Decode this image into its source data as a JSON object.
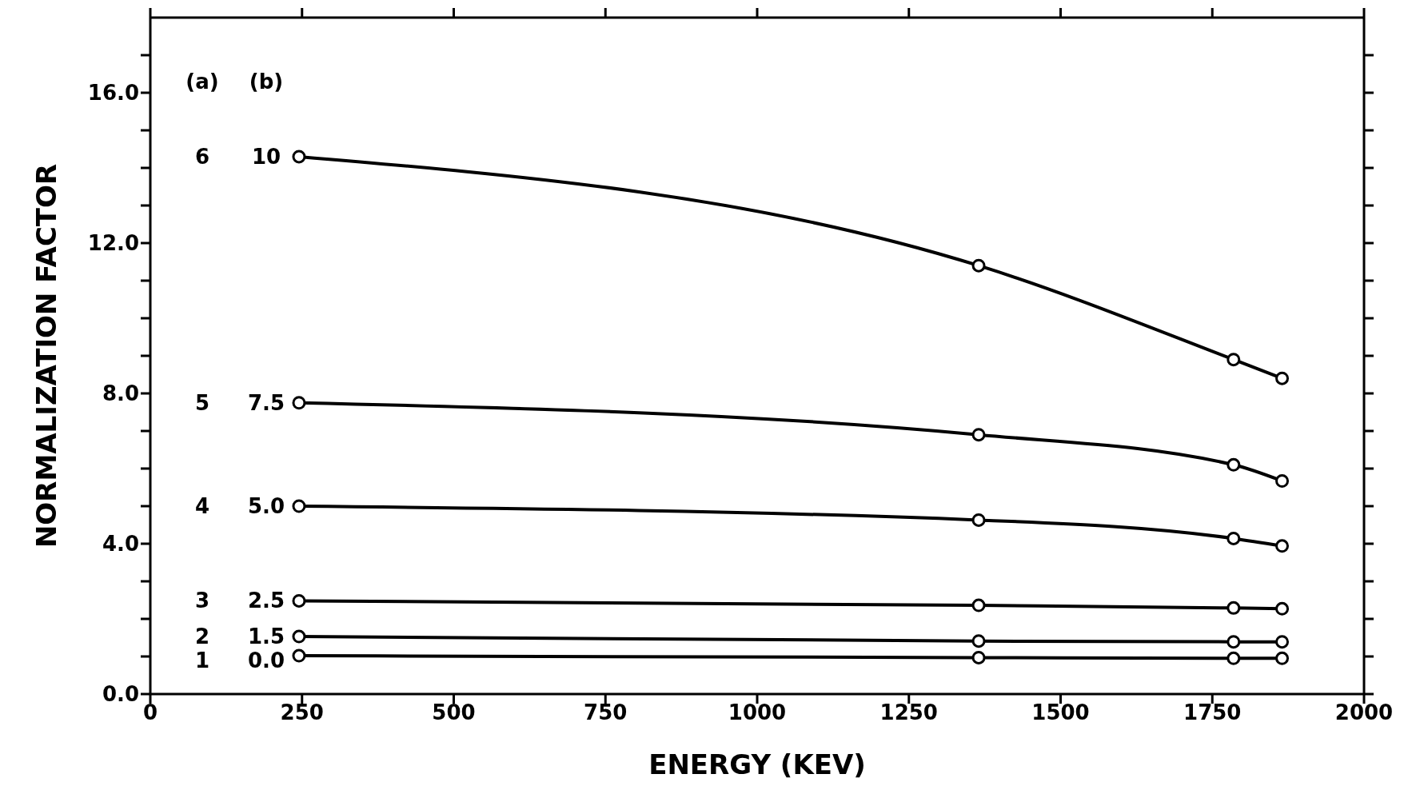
{
  "chart_data": {
    "type": "line",
    "xlabel": "ENERGY (KEV)",
    "ylabel": "NORMALIZATION FACTOR",
    "xlim": [
      0,
      2000
    ],
    "xticks": [
      0,
      250,
      500,
      750,
      1000,
      1250,
      1500,
      1750,
      2000
    ],
    "ylim": [
      0,
      18
    ],
    "yticks": [
      {
        "value": 0,
        "label": "0.0"
      },
      {
        "value": 1,
        "label": null
      },
      {
        "value": 2,
        "label": null
      },
      {
        "value": 3,
        "label": null
      },
      {
        "value": 4,
        "label": "4.0"
      },
      {
        "value": 5,
        "label": null
      },
      {
        "value": 6,
        "label": null
      },
      {
        "value": 7,
        "label": null
      },
      {
        "value": 8,
        "label": "8.0"
      },
      {
        "value": 9,
        "label": null
      },
      {
        "value": 10,
        "label": null
      },
      {
        "value": 11,
        "label": null
      },
      {
        "value": 12,
        "label": "12.0"
      },
      {
        "value": 13,
        "label": null
      },
      {
        "value": 14,
        "label": null
      },
      {
        "value": 15,
        "label": null
      },
      {
        "value": 16,
        "label": "16.0"
      },
      {
        "value": 17,
        "label": null
      }
    ],
    "x": [
      245,
      1365,
      1785,
      1865
    ],
    "marker": "circle",
    "line_style": "solid",
    "series": [
      {
        "color": "#000000",
        "values": [
          14.3,
          11.4,
          8.9,
          8.4
        ]
      },
      {
        "color": "#000000",
        "values": [
          7.75,
          6.9,
          6.1,
          5.67
        ]
      },
      {
        "color": "#000000",
        "values": [
          5.0,
          4.63,
          4.14,
          3.94
        ]
      },
      {
        "color": "#000000",
        "values": [
          2.48,
          2.36,
          2.29,
          2.27
        ]
      },
      {
        "color": "#000000",
        "values": [
          1.53,
          1.41,
          1.39,
          1.39
        ]
      },
      {
        "color": "#000000",
        "values": [
          1.02,
          0.97,
          0.95,
          0.95
        ]
      }
    ],
    "annotations": [
      "(a)",
      "(b)",
      "6",
      "10",
      "5",
      "7.5",
      "4",
      "5.0",
      "3",
      "2.5",
      "2",
      "1.5",
      "1",
      "0.0"
    ]
  }
}
